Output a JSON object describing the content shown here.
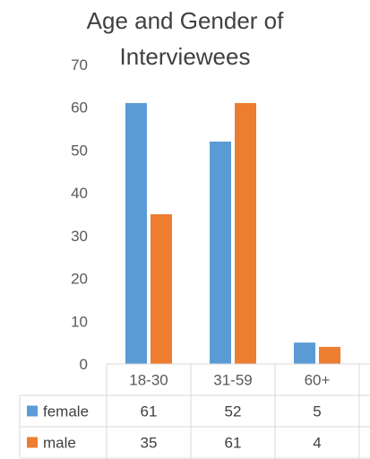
{
  "chart_data": {
    "type": "bar",
    "title_line1": "Age and Gender of",
    "title_line2": "Interviewees",
    "categories": [
      "18-30",
      "31-59",
      "60+"
    ],
    "series": [
      {
        "name": "female",
        "values": [
          61,
          52,
          5
        ],
        "color": "#5B9BD5"
      },
      {
        "name": "male",
        "values": [
          35,
          61,
          4
        ],
        "color": "#ED7D31"
      }
    ],
    "ylim": [
      0,
      70
    ],
    "yticks": [
      0,
      10,
      20,
      30,
      40,
      50,
      60,
      70
    ],
    "grid": false,
    "legend": "data-table"
  }
}
